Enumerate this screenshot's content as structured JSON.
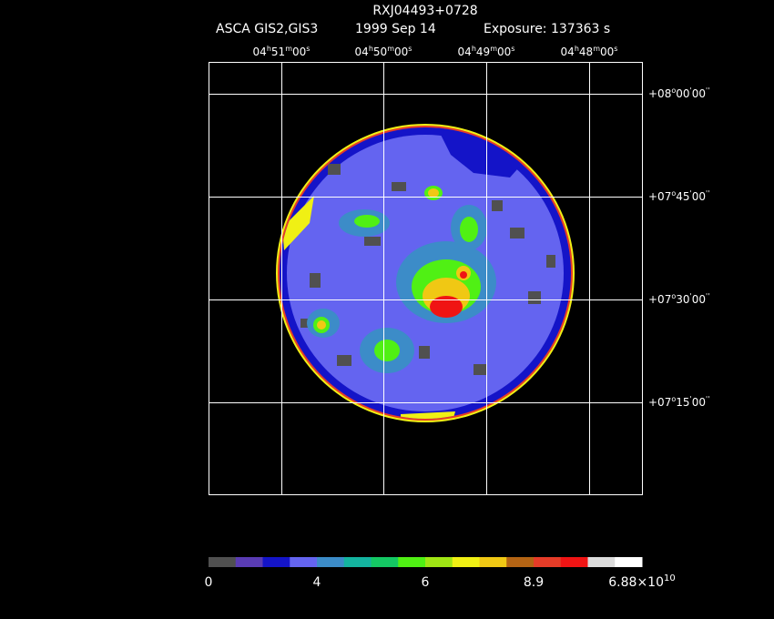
{
  "header": {
    "title": "RXJ04493+0728",
    "instrument": "ASCA GIS2,GIS3",
    "date": "1999 Sep 14",
    "exposure": "Exposure: 137363 s"
  },
  "ra_labels": [
    [
      "04",
      "h",
      "51",
      "m",
      "00",
      "s"
    ],
    [
      "04",
      "h",
      "50",
      "m",
      "00",
      "s"
    ],
    [
      "04",
      "h",
      "49",
      "m",
      "00",
      "s"
    ],
    [
      "04",
      "h",
      "48",
      "m",
      "00",
      "s"
    ]
  ],
  "dec_labels": [
    [
      "+08",
      "o",
      "00",
      "'",
      "00",
      "''"
    ],
    [
      "+07",
      "o",
      "45",
      "'",
      "00",
      "''"
    ],
    [
      "+07",
      "o",
      "30",
      "'",
      "00",
      "''"
    ],
    [
      "+07",
      "o",
      "15",
      "'",
      "00",
      "''"
    ]
  ],
  "colorbar": {
    "colors": [
      "#505050",
      "#5a3cb4",
      "#1414c8",
      "#6464f0",
      "#3c8cc8",
      "#14b4a0",
      "#14c864",
      "#50f014",
      "#a0e614",
      "#f0f014",
      "#f0c814",
      "#b46414",
      "#e63c28",
      "#f01414",
      "#dcdcdc",
      "#ffffff"
    ],
    "labels": [
      "0",
      "4",
      "6",
      "8.9",
      {
        "text": "6.88×10",
        "sup": "10"
      }
    ]
  }
}
